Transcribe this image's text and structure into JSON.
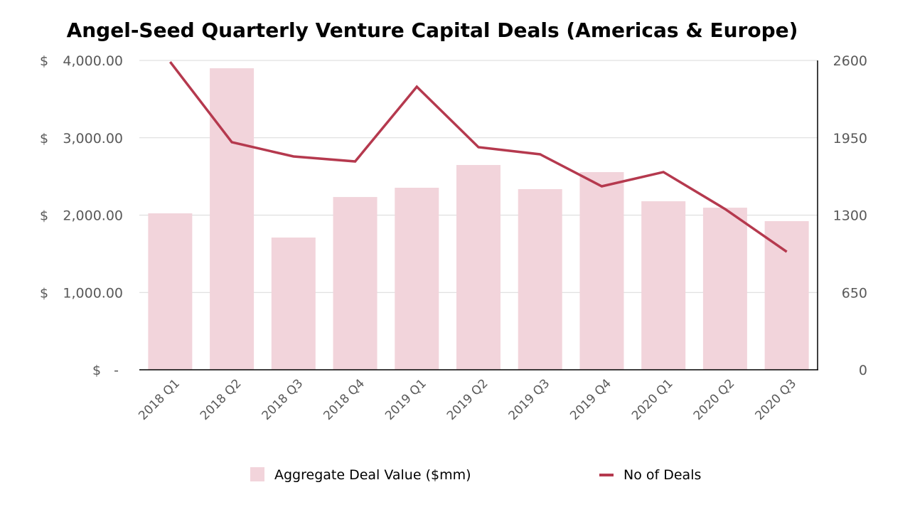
{
  "chart_data": {
    "type": "bar",
    "title": "Angel-Seed Quarterly Venture Capital Deals (Americas & Europe)",
    "categories": [
      "2018 Q1",
      "2018 Q2",
      "2018 Q3",
      "2018 Q4",
      "2019 Q1",
      "2019 Q2",
      "2019 Q3",
      "2019 Q4",
      "2020 Q1",
      "2020 Q2",
      "2020 Q3"
    ],
    "series": [
      {
        "name": "Aggregate Deal Value ($mm)",
        "type": "bar",
        "axis": "left",
        "color": "#f2d4db",
        "values": [
          2023,
          3899,
          1710,
          2234,
          2354,
          2648,
          2336,
          2556,
          2179,
          2096,
          1922
        ]
      },
      {
        "name": "No of Deals",
        "type": "line",
        "axis": "right",
        "color": "#b5394e",
        "values": [
          2588,
          1913,
          1793,
          1751,
          2379,
          1871,
          1811,
          1542,
          1662,
          1351,
          992
        ]
      }
    ],
    "y_left": {
      "range": [
        0,
        4000
      ],
      "ticks": [
        0,
        1000,
        2000,
        3000,
        4000
      ],
      "tick_labels": [
        "$   -",
        "$   1,000.00",
        "$   2,000.00",
        "$   3,000.00",
        "$   4,000.00"
      ]
    },
    "y_right": {
      "range": [
        0,
        2600
      ],
      "ticks": [
        0,
        650,
        1300,
        1950,
        2600
      ],
      "tick_labels": [
        "0",
        "650",
        "1300",
        "1950",
        "2600"
      ]
    },
    "grid": true,
    "legend": "bottom",
    "xlabel": "",
    "ylabel": ""
  }
}
